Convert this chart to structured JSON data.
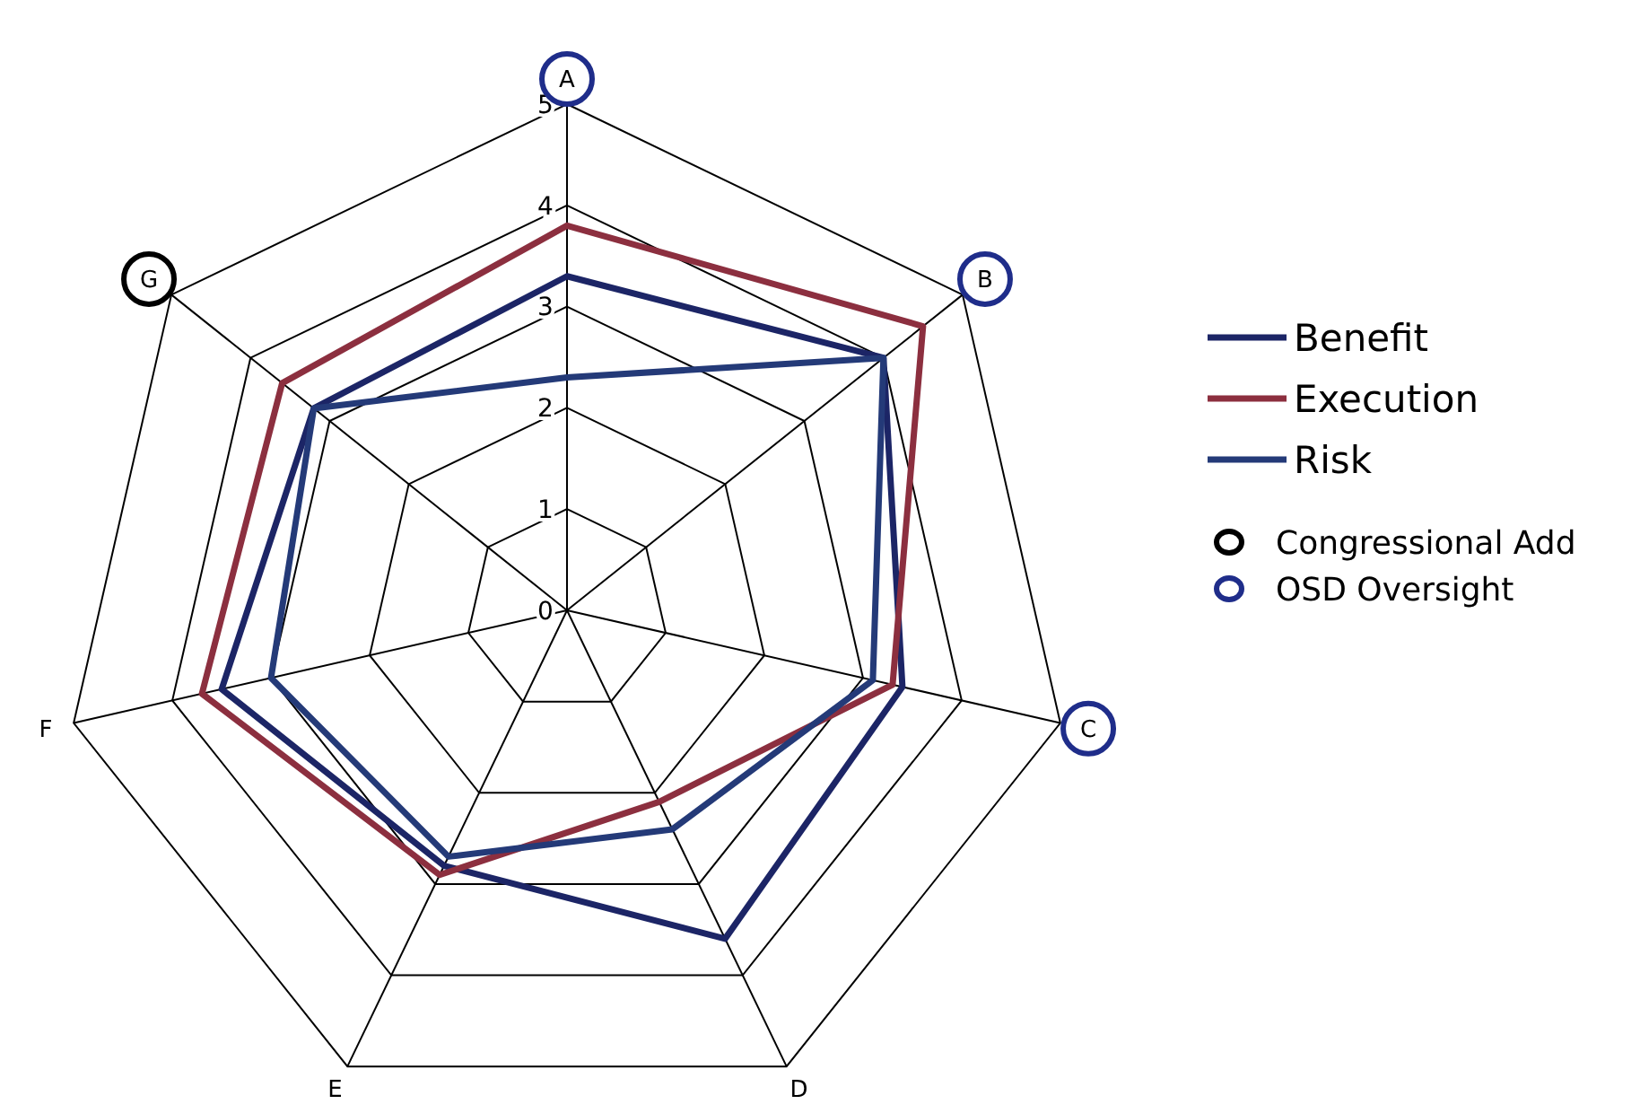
{
  "chart_data": {
    "type": "radar",
    "categories": [
      "A",
      "B",
      "C",
      "D",
      "E",
      "F",
      "G"
    ],
    "ylim": [
      0,
      5
    ],
    "yticks": [
      0,
      1,
      2,
      3,
      4,
      5
    ],
    "grid": true,
    "legend": "right",
    "series": [
      {
        "name": "Benefit",
        "color": "#1c2566",
        "values": [
          3.3,
          4,
          3.4,
          3.6,
          2.8,
          3.5,
          3.2
        ]
      },
      {
        "name": "Execution",
        "color": "#8c2f3f",
        "values": [
          3.8,
          4.5,
          3.3,
          2.1,
          2.9,
          3.7,
          3.6
        ]
      },
      {
        "name": "Risk",
        "color": "#243a78",
        "values": [
          2.3,
          4,
          3.1,
          2.4,
          2.7,
          3.0,
          3.2
        ]
      }
    ],
    "colors": [
      "#1f2d8a",
      "#1f2d8a",
      "#1f2d8a",
      null,
      null,
      null,
      "#000000"
    ],
    "annotations": [
      "Congressional Add",
      "OSD Oversight"
    ]
  }
}
